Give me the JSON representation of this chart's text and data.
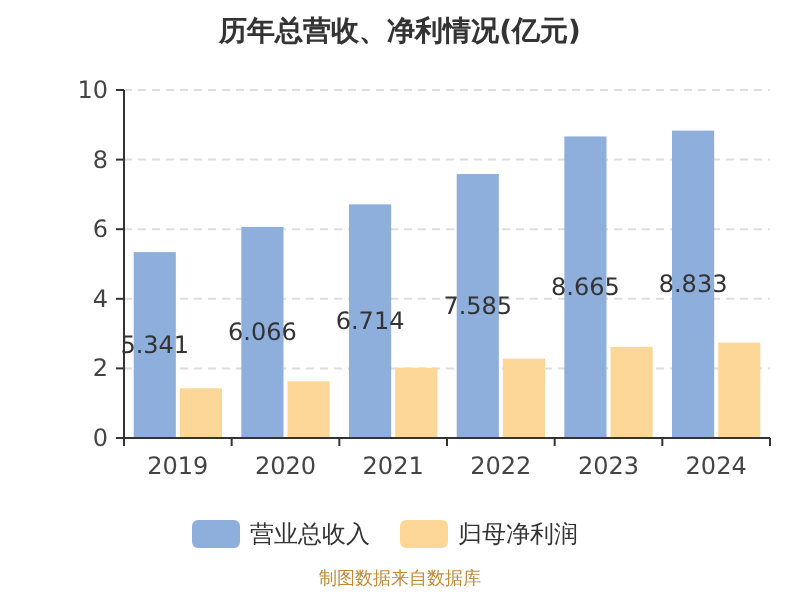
{
  "chart_data": {
    "type": "bar",
    "title": "历年总营收、净利情况(亿元)",
    "categories": [
      "2019",
      "2020",
      "2021",
      "2022",
      "2023",
      "2024"
    ],
    "series": [
      {
        "name": "营业总收入",
        "color": "#8eaedb",
        "values": [
          5.341,
          6.066,
          6.714,
          7.585,
          8.665,
          8.833
        ],
        "value_labels": [
          "5.341",
          "6.066",
          "6.714",
          "7.585",
          "8.665",
          "8.833"
        ]
      },
      {
        "name": "归母净利润",
        "color": "#fdd797",
        "values": [
          1.43,
          1.63,
          2.02,
          2.28,
          2.62,
          2.74
        ]
      }
    ],
    "ylim": [
      0,
      10
    ],
    "yticks": [
      0,
      2,
      4,
      6,
      8,
      10
    ],
    "grid": "y",
    "legend": "bottom",
    "annotations": [
      "制图数据来自数据库"
    ]
  }
}
